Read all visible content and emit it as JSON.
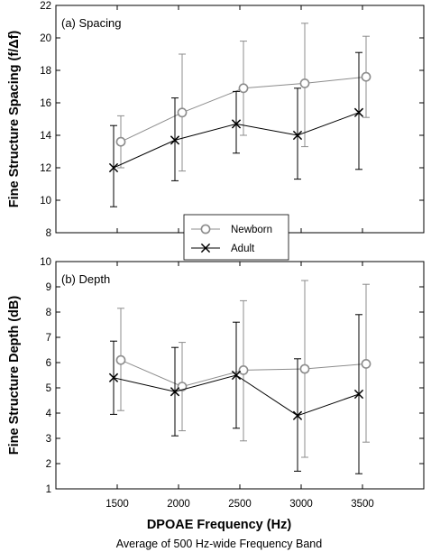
{
  "chart_data": [
    {
      "type": "line",
      "panel_label": "(a) Spacing",
      "ylabel": "Fine Structure Spacing (f/Δf)",
      "ylim": [
        8,
        22
      ],
      "yticks": [
        8,
        10,
        12,
        14,
        16,
        18,
        20,
        22
      ],
      "x": [
        1500,
        2000,
        2500,
        3000,
        3500
      ],
      "series": [
        {
          "name": "Newborn",
          "color": "#8c8c8c",
          "marker": "circle",
          "values": [
            13.6,
            15.4,
            16.9,
            17.2,
            17.6
          ],
          "err_low": [
            12.0,
            11.8,
            14.0,
            13.3,
            15.1
          ],
          "err_high": [
            15.2,
            19.0,
            19.8,
            20.9,
            20.1
          ]
        },
        {
          "name": "Adult",
          "color": "#000000",
          "marker": "x",
          "values": [
            12.0,
            13.7,
            14.7,
            14.0,
            15.4
          ],
          "err_low": [
            9.6,
            11.2,
            12.9,
            11.3,
            11.9
          ],
          "err_high": [
            14.6,
            16.3,
            16.7,
            16.9,
            19.1
          ]
        }
      ]
    },
    {
      "type": "line",
      "panel_label": "(b) Depth",
      "ylabel": "Fine Structure Depth (dB)",
      "ylim": [
        1,
        10
      ],
      "yticks": [
        1,
        2,
        3,
        4,
        5,
        6,
        7,
        8,
        9,
        10
      ],
      "x": [
        1500,
        2000,
        2500,
        3000,
        3500
      ],
      "series": [
        {
          "name": "Newborn",
          "color": "#8c8c8c",
          "marker": "circle",
          "values": [
            6.1,
            5.05,
            5.7,
            5.75,
            5.95
          ],
          "err_low": [
            4.1,
            3.3,
            2.9,
            2.25,
            2.85
          ],
          "err_high": [
            8.15,
            6.8,
            8.45,
            9.25,
            9.1
          ]
        },
        {
          "name": "Adult",
          "color": "#000000",
          "marker": "x",
          "values": [
            5.4,
            4.85,
            5.5,
            3.9,
            4.75
          ],
          "err_low": [
            3.95,
            3.1,
            3.4,
            1.7,
            1.6
          ],
          "err_high": [
            6.85,
            6.6,
            7.6,
            6.15,
            7.9
          ]
        }
      ]
    }
  ],
  "xaxis": {
    "title": "DPOAE Frequency (Hz)",
    "subtitle": "Average of 500 Hz-wide Frequency Band",
    "xlim": [
      1000,
      4000
    ],
    "ticks": [
      1500,
      2000,
      2500,
      3000,
      3500
    ]
  },
  "legend": {
    "placement": "between-panels",
    "entries": [
      "Newborn",
      "Adult"
    ]
  }
}
